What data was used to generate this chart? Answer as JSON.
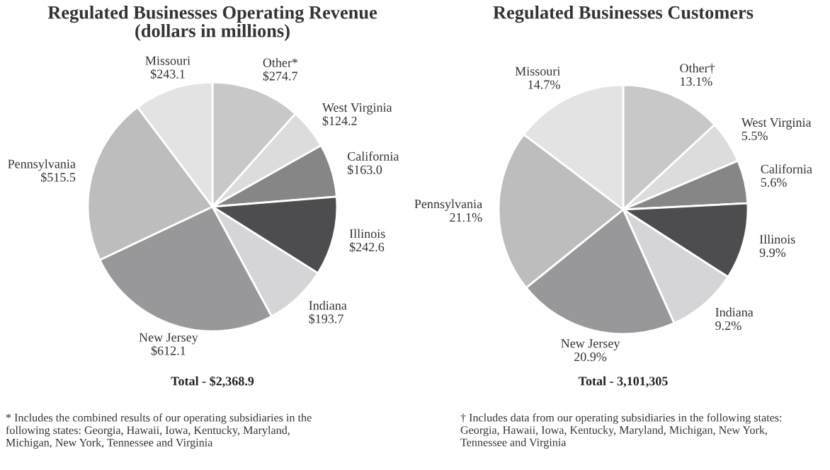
{
  "chart_data": [
    {
      "type": "pie",
      "title": "Regulated Businesses Operating Revenue\n(dollars in millions)",
      "categories": [
        "Other*",
        "West Virginia",
        "California",
        "Illinois",
        "Indiana",
        "New Jersey",
        "Pennsylvania",
        "Missouri"
      ],
      "values": [
        274.7,
        124.2,
        163.0,
        242.6,
        193.7,
        612.1,
        515.5,
        243.1
      ],
      "value_labels": [
        "$274.7",
        "$124.2",
        "$163.0",
        "$242.6",
        "$193.7",
        "$612.1",
        "$515.5",
        "$243.1"
      ],
      "colors": [
        "#c8c8c8",
        "#dcdcdc",
        "#868686",
        "#4d4d4f",
        "#d5d5d7",
        "#98989a",
        "#bdbdbd",
        "#e3e3e3"
      ],
      "annotations": [
        "Total - $2,368.9",
        "* Includes the combined results of our operating subsidiaries in the\nfollowing states: Georgia, Hawaii, Iowa, Kentucky, Maryland,\nMichigan, New York, Tennessee and Virginia"
      ]
    },
    {
      "type": "pie",
      "title": "Regulated Businesses Customers",
      "categories": [
        "Other†",
        "West Virginia",
        "California",
        "Illinois",
        "Indiana",
        "New Jersey",
        "Pennsylvania",
        "Missouri"
      ],
      "values": [
        13.1,
        5.5,
        5.6,
        9.9,
        9.2,
        20.9,
        21.1,
        14.7
      ],
      "value_labels": [
        "13.1%",
        "5.5%",
        "5.6%",
        "9.9%",
        "9.2%",
        "20.9%",
        "21.1%",
        "14.7%"
      ],
      "colors": [
        "#c8c8c8",
        "#dcdcdc",
        "#868686",
        "#4d4d4f",
        "#d5d5d7",
        "#98989a",
        "#bdbdbd",
        "#e3e3e3"
      ],
      "annotations": [
        "Total - 3,101,305",
        "† Includes data from our operating subsidiaries in the following states:\nGeorgia, Hawaii, Iowa, Kentucky, Maryland, Michigan, New York,\nTennessee and Virginia"
      ]
    }
  ]
}
